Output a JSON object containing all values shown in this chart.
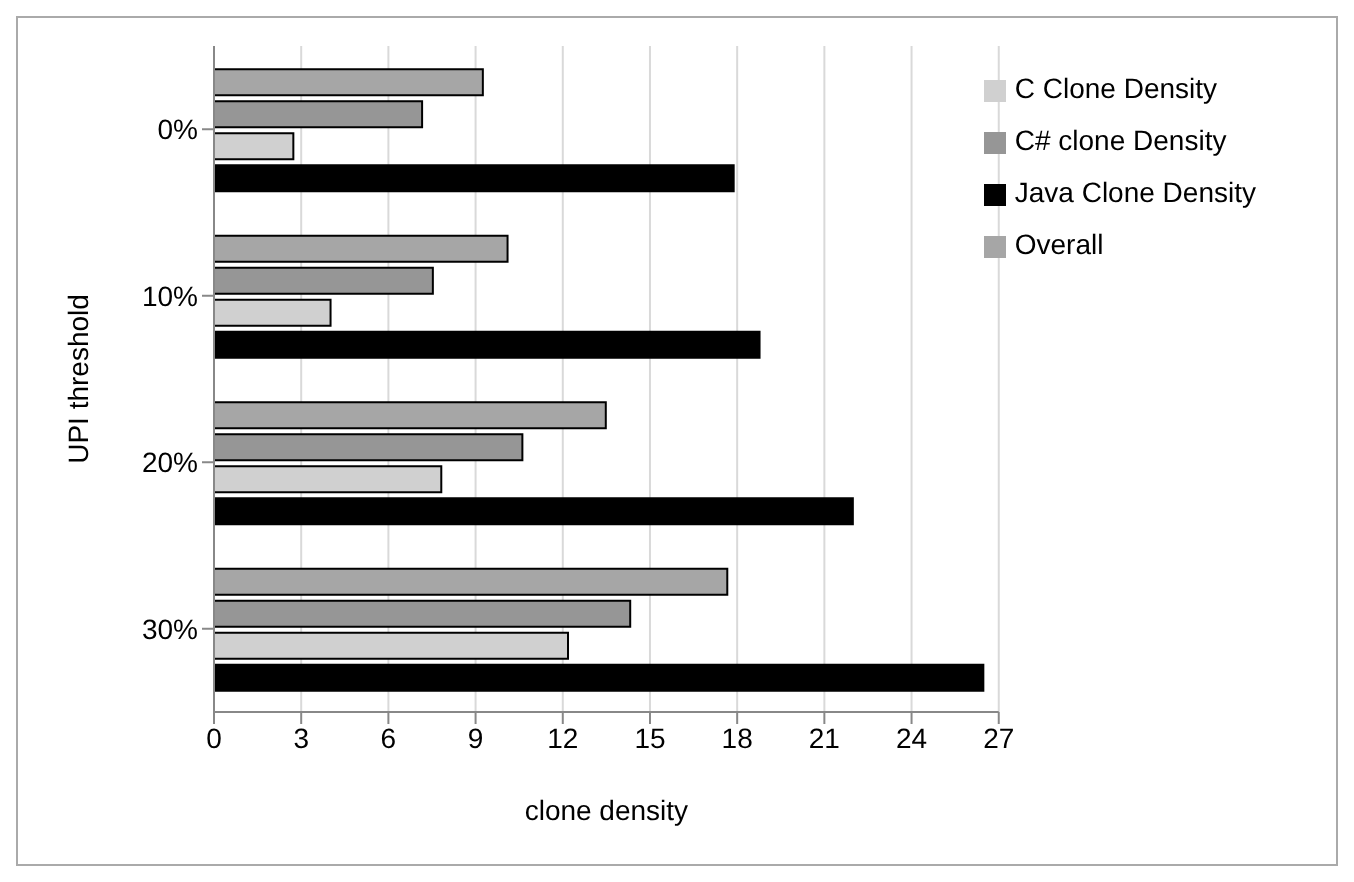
{
  "chart_data": {
    "type": "bar",
    "orientation": "horizontal",
    "xlabel": "clone density",
    "ylabel": "UPI threshold",
    "categories": [
      "0%",
      "10%",
      "20%",
      "30%"
    ],
    "series": [
      {
        "name": "Overall",
        "color": "#a6a6a6",
        "values": [
          9.25,
          10.1,
          13.48,
          17.66
        ]
      },
      {
        "name": "C# clone Density",
        "color": "#969696",
        "values": [
          7.16,
          7.53,
          10.61,
          14.32
        ]
      },
      {
        "name": "C Clone Density",
        "color": "#d0d0d0",
        "values": [
          2.73,
          4.01,
          7.82,
          12.18
        ]
      },
      {
        "name": "Java Clone Density",
        "color": "#000000",
        "values": [
          17.88,
          18.77,
          21.98,
          26.47
        ]
      }
    ],
    "xlim": [
      0,
      27
    ],
    "xticks": [
      0,
      3,
      6,
      9,
      12,
      15,
      18,
      21,
      24,
      27
    ],
    "grid": "x",
    "legend": "top right"
  }
}
